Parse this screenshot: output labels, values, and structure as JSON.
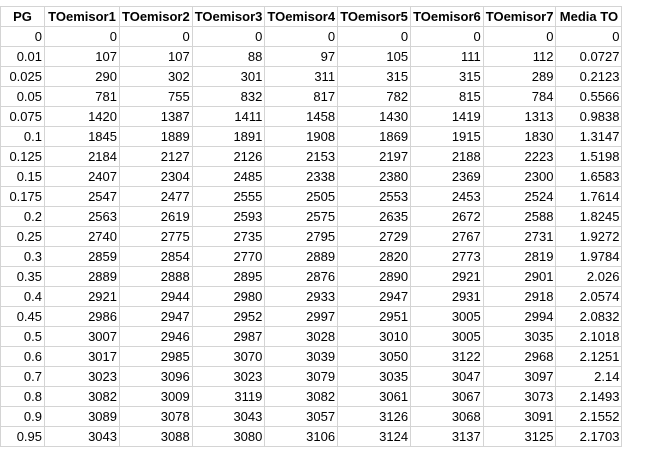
{
  "sheet": {
    "headers": [
      "PG",
      "TOemisor1",
      "TOemisor2",
      "TOemisor3",
      "TOemisor4",
      "TOemisor5",
      "TOemisor6",
      "TOemisor7",
      "Media TO"
    ],
    "rows": [
      [
        "0",
        "0",
        "0",
        "0",
        "0",
        "0",
        "0",
        "0",
        "0"
      ],
      [
        "0.01",
        "107",
        "107",
        "88",
        "97",
        "105",
        "111",
        "112",
        "0.0727"
      ],
      [
        "0.025",
        "290",
        "302",
        "301",
        "311",
        "315",
        "315",
        "289",
        "0.2123"
      ],
      [
        "0.05",
        "781",
        "755",
        "832",
        "817",
        "782",
        "815",
        "784",
        "0.5566"
      ],
      [
        "0.075",
        "1420",
        "1387",
        "1411",
        "1458",
        "1430",
        "1419",
        "1313",
        "0.9838"
      ],
      [
        "0.1",
        "1845",
        "1889",
        "1891",
        "1908",
        "1869",
        "1915",
        "1830",
        "1.3147"
      ],
      [
        "0.125",
        "2184",
        "2127",
        "2126",
        "2153",
        "2197",
        "2188",
        "2223",
        "1.5198"
      ],
      [
        "0.15",
        "2407",
        "2304",
        "2485",
        "2338",
        "2380",
        "2369",
        "2300",
        "1.6583"
      ],
      [
        "0.175",
        "2547",
        "2477",
        "2555",
        "2505",
        "2553",
        "2453",
        "2524",
        "1.7614"
      ],
      [
        "0.2",
        "2563",
        "2619",
        "2593",
        "2575",
        "2635",
        "2672",
        "2588",
        "1.8245"
      ],
      [
        "0.25",
        "2740",
        "2775",
        "2735",
        "2795",
        "2729",
        "2767",
        "2731",
        "1.9272"
      ],
      [
        "0.3",
        "2859",
        "2854",
        "2770",
        "2889",
        "2820",
        "2773",
        "2819",
        "1.9784"
      ],
      [
        "0.35",
        "2889",
        "2888",
        "2895",
        "2876",
        "2890",
        "2921",
        "2901",
        "2.026"
      ],
      [
        "0.4",
        "2921",
        "2944",
        "2980",
        "2933",
        "2947",
        "2931",
        "2918",
        "2.0574"
      ],
      [
        "0.45",
        "2986",
        "2947",
        "2952",
        "2997",
        "2951",
        "3005",
        "2994",
        "2.0832"
      ],
      [
        "0.5",
        "3007",
        "2946",
        "2987",
        "3028",
        "3010",
        "3005",
        "3035",
        "2.1018"
      ],
      [
        "0.6",
        "3017",
        "2985",
        "3070",
        "3039",
        "3050",
        "3122",
        "2968",
        "2.1251"
      ],
      [
        "0.7",
        "3023",
        "3096",
        "3023",
        "3079",
        "3035",
        "3047",
        "3097",
        "2.14"
      ],
      [
        "0.8",
        "3082",
        "3009",
        "3119",
        "3082",
        "3061",
        "3067",
        "3073",
        "2.1493"
      ],
      [
        "0.9",
        "3089",
        "3078",
        "3043",
        "3057",
        "3126",
        "3068",
        "3091",
        "2.1552"
      ],
      [
        "0.95",
        "3043",
        "3088",
        "3080",
        "3106",
        "3124",
        "3137",
        "3125",
        "2.1703"
      ]
    ]
  }
}
